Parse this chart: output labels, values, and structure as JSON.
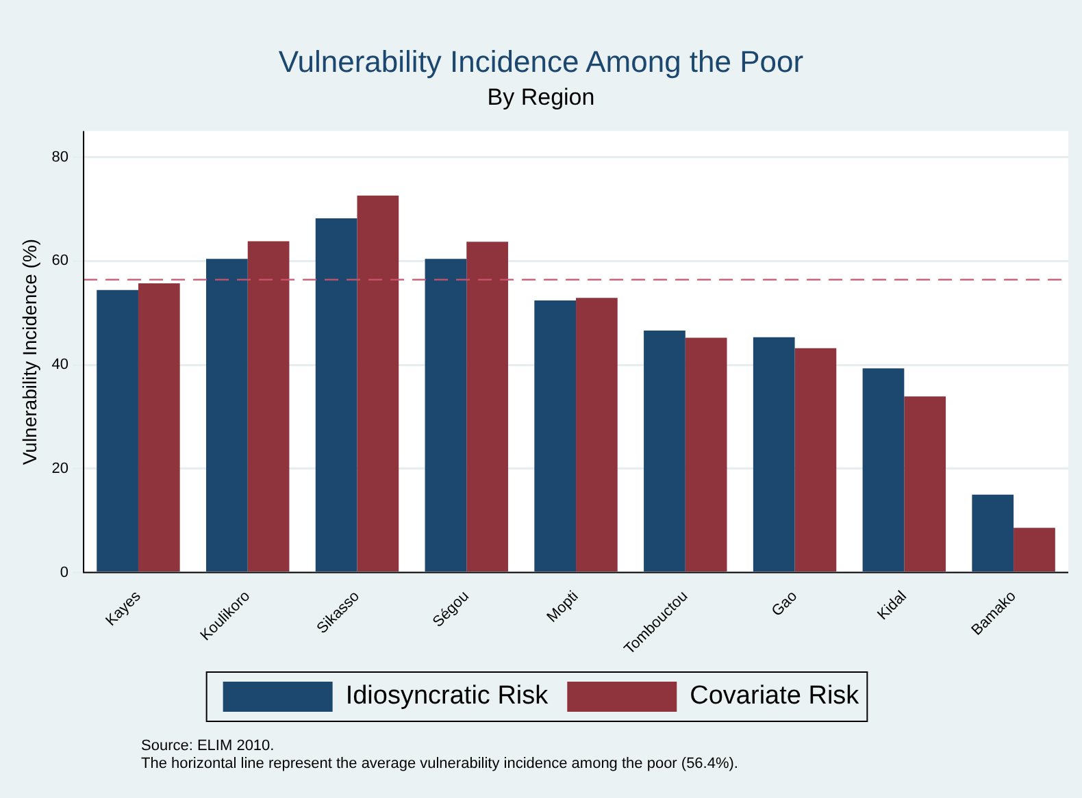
{
  "chart_data": {
    "type": "bar",
    "title": "Vulnerability Incidence Among the Poor",
    "subtitle": "By Region",
    "ylabel": "Vulnerability Incidence (%)",
    "categories": [
      "Kayes",
      "Koulikoro",
      "Sikasso",
      "Ségou",
      "Mopti",
      "Tombouctou",
      "Gao",
      "Kidal",
      "Bamako"
    ],
    "series": [
      {
        "name": "Idiosyncratic Risk",
        "color": "#1c476e",
        "values": [
          54.4,
          60.4,
          68.2,
          60.4,
          52.4,
          46.6,
          45.3,
          39.3,
          15.0
        ]
      },
      {
        "name": "Covariate Risk",
        "color": "#8f343d",
        "values": [
          55.7,
          63.8,
          72.6,
          63.7,
          52.9,
          45.2,
          43.2,
          33.9,
          8.6
        ]
      }
    ],
    "ylim": [
      0,
      85
    ],
    "yticks": [
      0,
      20,
      40,
      60,
      80
    ],
    "grid": "y",
    "legend": "bottom",
    "ref_lines": [
      {
        "axis": "y",
        "value": 56.4,
        "color": "#c8556e",
        "line_style": "dashed"
      }
    ],
    "annotations": [
      "Source: ELIM 2010.",
      "The horizontal line represent the average vulnerability incidence among the poor (56.4%)."
    ]
  }
}
